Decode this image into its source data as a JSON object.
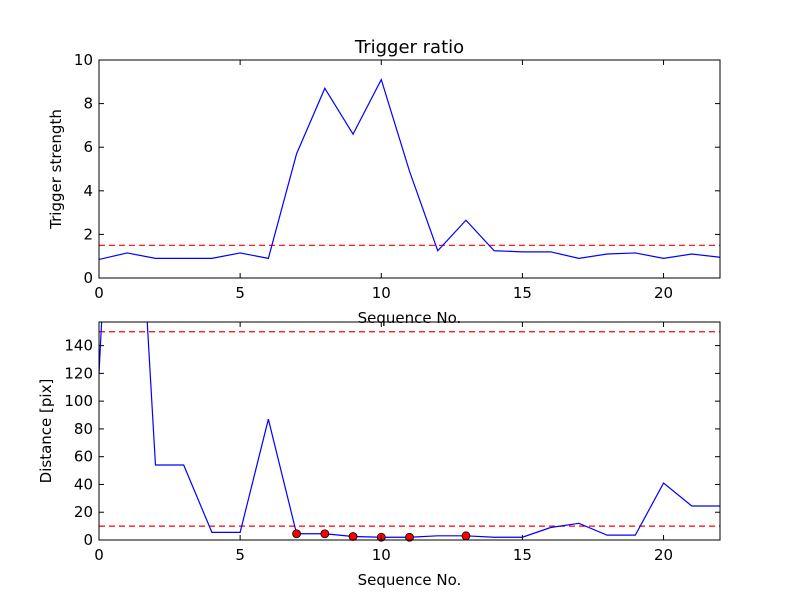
{
  "chart_data": [
    {
      "type": "line",
      "title": "Trigger ratio",
      "xlabel": "Sequence No.",
      "ylabel": "Trigger strength",
      "xlim": [
        0,
        22
      ],
      "ylim": [
        0,
        10
      ],
      "x_ticks": [
        0,
        5,
        10,
        15,
        20
      ],
      "y_ticks": [
        0,
        2,
        4,
        6,
        8,
        10
      ],
      "x_tick_labels": [
        "0",
        "5",
        "10",
        "15",
        "20"
      ],
      "y_tick_labels": [
        "0",
        "2",
        "4",
        "6",
        "8",
        "10"
      ],
      "grid": false,
      "series": [
        {
          "color": "#0000ff",
          "x": [
            0,
            1,
            2,
            3,
            4,
            5,
            6,
            7,
            8,
            9,
            10,
            11,
            12,
            13,
            14,
            15,
            16,
            17,
            18,
            19,
            20,
            21,
            22
          ],
          "values": [
            0.85,
            1.15,
            0.9,
            0.9,
            0.9,
            1.15,
            0.9,
            5.7,
            8.7,
            6.6,
            9.1,
            4.9,
            1.25,
            2.65,
            1.25,
            1.2,
            1.2,
            0.9,
            1.1,
            1.15,
            0.9,
            1.1,
            0.95
          ]
        }
      ],
      "threshold_lines": [
        {
          "y": 1.5,
          "color": "#ff0000",
          "style": "dashed"
        }
      ]
    },
    {
      "type": "line",
      "title": "",
      "xlabel": "Sequence No.",
      "ylabel": "Distance [pix]",
      "xlim": [
        0,
        22
      ],
      "ylim": [
        0,
        157
      ],
      "x_ticks": [
        0,
        5,
        10,
        15,
        20
      ],
      "y_ticks": [
        0,
        20,
        40,
        60,
        80,
        100,
        120,
        140
      ],
      "x_tick_labels": [
        "0",
        "5",
        "10",
        "15",
        "20"
      ],
      "y_tick_labels": [
        "0",
        "20",
        "40",
        "60",
        "80",
        "100",
        "120",
        "140"
      ],
      "grid": false,
      "series": [
        {
          "color": "#0000ff",
          "x": [
            0,
            0.1,
            1.7,
            2,
            3,
            4,
            5,
            6,
            7,
            8,
            9,
            10,
            11,
            12,
            13,
            14,
            15,
            16,
            17,
            18,
            19,
            20,
            21,
            22
          ],
          "values": [
            120,
            160,
            160,
            54,
            54,
            5.5,
            5.5,
            87,
            4.5,
            4.5,
            2.5,
            2,
            2,
            3,
            3,
            2,
            2,
            9,
            12,
            3.5,
            3.5,
            41,
            24.5,
            24.5
          ]
        },
        {
          "color": "#ff0000",
          "marker": "circle",
          "x": [
            7,
            8,
            9,
            10,
            11,
            13
          ],
          "values": [
            4.5,
            4.5,
            2.5,
            2,
            2,
            3
          ]
        }
      ],
      "threshold_lines": [
        {
          "y": 150,
          "color": "#ff0000",
          "style": "dashed"
        },
        {
          "y": 10,
          "color": "#ff0000",
          "style": "dashed"
        }
      ]
    }
  ]
}
